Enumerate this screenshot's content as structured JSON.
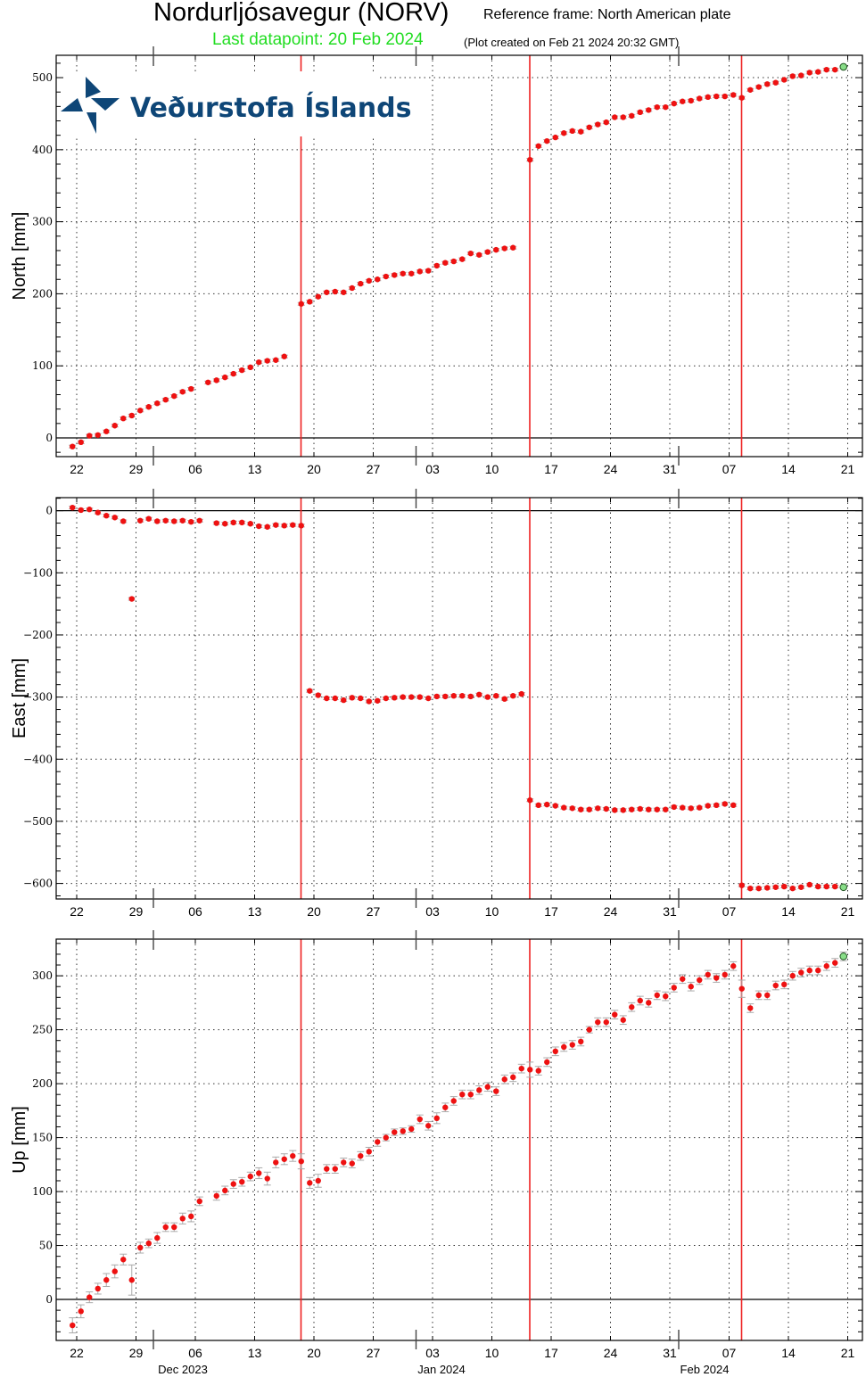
{
  "header": {
    "station_title": "Nordurljósavegur (NORV)",
    "reference_frame": "Reference frame: North American plate",
    "last_datapoint": "Last datapoint: 20 Feb 2024",
    "plot_created": "(Plot created on Feb 21 2024 20:32 GMT)"
  },
  "logo": {
    "text": "Veðurstofa Íslands",
    "color": "#0e4677"
  },
  "colors": {
    "point": "#ee1111",
    "last_point": "#88dd88",
    "event_line": "#ee2222",
    "errorbar": "#aaaaaa",
    "grid": "#333333"
  },
  "chart_data": [
    {
      "type": "scatter",
      "title": "North",
      "ylabel": "North [mm]",
      "ylim": [
        -26,
        531
      ],
      "yticks": [
        0,
        100,
        200,
        300,
        400,
        500
      ],
      "xlabel": "",
      "x_tick_labels": [
        "22",
        "29",
        "06",
        "13",
        "20",
        "27",
        "03",
        "10",
        "17",
        "24",
        "31",
        "07",
        "14",
        "21"
      ],
      "month_labels": [
        "Dec 2023",
        "Jan 2024",
        "Feb 2024"
      ],
      "event_lines_day": [
        26,
        53,
        78
      ],
      "x_start": "2023-11-22",
      "points": [
        [
          -0.5,
          -12
        ],
        [
          0.5,
          -6
        ],
        [
          1.5,
          3
        ],
        [
          2.5,
          4
        ],
        [
          3.5,
          9
        ],
        [
          4.5,
          17
        ],
        [
          5.5,
          27
        ],
        [
          6.5,
          31
        ],
        [
          7.5,
          38
        ],
        [
          8.5,
          43
        ],
        [
          9.5,
          48
        ],
        [
          10.5,
          53
        ],
        [
          11.5,
          58
        ],
        [
          12.5,
          64
        ],
        [
          13.5,
          68
        ],
        [
          15.5,
          77
        ],
        [
          16.5,
          80
        ],
        [
          17.5,
          84
        ],
        [
          18.5,
          89
        ],
        [
          19.5,
          94
        ],
        [
          20.5,
          98
        ],
        [
          21.5,
          105
        ],
        [
          22.5,
          107
        ],
        [
          23.5,
          108
        ],
        [
          24.5,
          113
        ],
        [
          26.5,
          186
        ],
        [
          27.5,
          189
        ],
        [
          28.5,
          196
        ],
        [
          29.5,
          202
        ],
        [
          30.5,
          203
        ],
        [
          31.5,
          202
        ],
        [
          32.5,
          208
        ],
        [
          33.5,
          214
        ],
        [
          34.5,
          218
        ],
        [
          35.5,
          220
        ],
        [
          36.5,
          224
        ],
        [
          37.5,
          226
        ],
        [
          38.5,
          228
        ],
        [
          39.5,
          228
        ],
        [
          40.5,
          231
        ],
        [
          41.5,
          232
        ],
        [
          42.5,
          239
        ],
        [
          43.5,
          243
        ],
        [
          44.5,
          245
        ],
        [
          45.5,
          248
        ],
        [
          46.5,
          256
        ],
        [
          47.5,
          254
        ],
        [
          48.5,
          258
        ],
        [
          49.5,
          261
        ],
        [
          50.5,
          263
        ],
        [
          51.5,
          264
        ],
        [
          53.5,
          386
        ],
        [
          54.5,
          405
        ],
        [
          55.5,
          412
        ],
        [
          56.5,
          417
        ],
        [
          57.5,
          423
        ],
        [
          58.5,
          426
        ],
        [
          59.5,
          425
        ],
        [
          60.5,
          431
        ],
        [
          61.5,
          435
        ],
        [
          62.5,
          438
        ],
        [
          63.5,
          445
        ],
        [
          64.5,
          445
        ],
        [
          65.5,
          447
        ],
        [
          66.5,
          452
        ],
        [
          67.5,
          455
        ],
        [
          68.5,
          459
        ],
        [
          69.5,
          459
        ],
        [
          70.5,
          464
        ],
        [
          71.5,
          467
        ],
        [
          72.5,
          468
        ],
        [
          73.5,
          471
        ],
        [
          74.5,
          473
        ],
        [
          75.5,
          474
        ],
        [
          76.5,
          474
        ],
        [
          77.5,
          476
        ],
        [
          78.5,
          472
        ],
        [
          79.5,
          483
        ],
        [
          80.5,
          487
        ],
        [
          81.5,
          491
        ],
        [
          82.5,
          493
        ],
        [
          83.5,
          497
        ],
        [
          84.5,
          502
        ],
        [
          85.5,
          503
        ],
        [
          86.5,
          507
        ],
        [
          87.5,
          508
        ],
        [
          88.5,
          511
        ],
        [
          89.5,
          511
        ]
      ],
      "last_point": [
        90.5,
        515
      ]
    },
    {
      "type": "scatter",
      "title": "East",
      "ylabel": "East [mm]",
      "ylim": [
        -625,
        21
      ],
      "yticks": [
        0,
        -100,
        -200,
        -300,
        -400,
        -500,
        -600
      ],
      "x_tick_labels": [
        "22",
        "29",
        "06",
        "13",
        "20",
        "27",
        "03",
        "10",
        "17",
        "24",
        "31",
        "07",
        "14",
        "21"
      ],
      "event_lines_day": [
        26,
        53,
        78
      ],
      "points": [
        [
          -0.5,
          5
        ],
        [
          0.5,
          1
        ],
        [
          1.5,
          2
        ],
        [
          2.5,
          -3
        ],
        [
          3.5,
          -8
        ],
        [
          4.5,
          -11
        ],
        [
          5.5,
          -17
        ],
        [
          6.5,
          -142
        ],
        [
          7.5,
          -16
        ],
        [
          8.5,
          -13
        ],
        [
          9.5,
          -17
        ],
        [
          10.5,
          -16
        ],
        [
          11.5,
          -17
        ],
        [
          12.5,
          -16
        ],
        [
          13.5,
          -18
        ],
        [
          14.5,
          -16
        ],
        [
          16.5,
          -20
        ],
        [
          17.5,
          -21
        ],
        [
          18.5,
          -19
        ],
        [
          19.5,
          -19
        ],
        [
          20.5,
          -21
        ],
        [
          21.5,
          -25
        ],
        [
          22.5,
          -26
        ],
        [
          23.5,
          -23
        ],
        [
          24.5,
          -24
        ],
        [
          25.5,
          -23
        ],
        [
          26.5,
          -24
        ],
        [
          27.5,
          -290
        ],
        [
          28.5,
          -297
        ],
        [
          29.5,
          -302
        ],
        [
          30.5,
          -302
        ],
        [
          31.5,
          -305
        ],
        [
          32.5,
          -301
        ],
        [
          33.5,
          -302
        ],
        [
          34.5,
          -307
        ],
        [
          35.5,
          -306
        ],
        [
          36.5,
          -302
        ],
        [
          37.5,
          -301
        ],
        [
          38.5,
          -300
        ],
        [
          39.5,
          -300
        ],
        [
          40.5,
          -300
        ],
        [
          41.5,
          -302
        ],
        [
          42.5,
          -299
        ],
        [
          43.5,
          -299
        ],
        [
          44.5,
          -298
        ],
        [
          45.5,
          -298
        ],
        [
          46.5,
          -299
        ],
        [
          47.5,
          -296
        ],
        [
          48.5,
          -300
        ],
        [
          49.5,
          -298
        ],
        [
          50.5,
          -303
        ],
        [
          51.5,
          -298
        ],
        [
          52.5,
          -295
        ],
        [
          53.5,
          -466
        ],
        [
          54.5,
          -474
        ],
        [
          55.5,
          -473
        ],
        [
          56.5,
          -475
        ],
        [
          57.5,
          -478
        ],
        [
          58.5,
          -479
        ],
        [
          59.5,
          -481
        ],
        [
          60.5,
          -481
        ],
        [
          61.5,
          -479
        ],
        [
          62.5,
          -480
        ],
        [
          63.5,
          -482
        ],
        [
          64.5,
          -482
        ],
        [
          65.5,
          -481
        ],
        [
          66.5,
          -480
        ],
        [
          67.5,
          -481
        ],
        [
          68.5,
          -481
        ],
        [
          69.5,
          -481
        ],
        [
          70.5,
          -477
        ],
        [
          71.5,
          -478
        ],
        [
          72.5,
          -479
        ],
        [
          73.5,
          -478
        ],
        [
          74.5,
          -475
        ],
        [
          75.5,
          -474
        ],
        [
          76.5,
          -472
        ],
        [
          77.5,
          -474
        ],
        [
          78.5,
          -603
        ],
        [
          79.5,
          -608
        ],
        [
          80.5,
          -608
        ],
        [
          81.5,
          -607
        ],
        [
          82.5,
          -606
        ],
        [
          83.5,
          -605
        ],
        [
          84.5,
          -608
        ],
        [
          85.5,
          -606
        ],
        [
          86.5,
          -602
        ],
        [
          87.5,
          -605
        ],
        [
          88.5,
          -605
        ],
        [
          89.5,
          -605
        ]
      ],
      "last_point": [
        90.5,
        -606
      ]
    },
    {
      "type": "scatter",
      "title": "Up",
      "ylabel": "Up [mm]",
      "ylim": [
        -38,
        334
      ],
      "yticks": [
        0,
        50,
        100,
        150,
        200,
        250,
        300
      ],
      "x_tick_labels": [
        "22",
        "29",
        "06",
        "13",
        "20",
        "27",
        "03",
        "10",
        "17",
        "24",
        "31",
        "07",
        "14",
        "21"
      ],
      "month_labels": [
        "Dec 2023",
        "Jan 2024",
        "Feb 2024"
      ],
      "event_lines_day": [
        26,
        53,
        78
      ],
      "points": [
        [
          -0.5,
          -24,
          7
        ],
        [
          0.5,
          -11,
          6
        ],
        [
          1.5,
          2,
          5
        ],
        [
          2.5,
          10,
          5
        ],
        [
          3.5,
          18,
          6
        ],
        [
          4.5,
          26,
          6
        ],
        [
          5.5,
          37,
          5
        ],
        [
          6.5,
          18,
          14
        ],
        [
          7.5,
          48,
          5
        ],
        [
          8.5,
          52,
          4
        ],
        [
          9.5,
          57,
          5
        ],
        [
          10.5,
          67,
          4
        ],
        [
          11.5,
          67,
          4
        ],
        [
          12.5,
          75,
          5
        ],
        [
          13.5,
          77,
          5
        ],
        [
          14.5,
          91,
          4
        ],
        [
          16.5,
          96,
          4
        ],
        [
          17.5,
          101,
          4
        ],
        [
          18.5,
          107,
          4
        ],
        [
          19.5,
          109,
          4
        ],
        [
          20.5,
          114,
          4
        ],
        [
          21.5,
          117,
          5
        ],
        [
          22.5,
          112,
          6
        ],
        [
          23.5,
          127,
          5
        ],
        [
          24.5,
          130,
          5
        ],
        [
          25.5,
          133,
          5
        ],
        [
          26.5,
          128,
          7
        ],
        [
          27.5,
          108,
          5
        ],
        [
          28.5,
          110,
          6
        ],
        [
          29.5,
          121,
          4
        ],
        [
          30.5,
          121,
          4
        ],
        [
          31.5,
          127,
          4
        ],
        [
          32.5,
          126,
          4
        ],
        [
          33.5,
          133,
          4
        ],
        [
          34.5,
          137,
          4
        ],
        [
          35.5,
          146,
          4
        ],
        [
          36.5,
          150,
          3
        ],
        [
          37.5,
          155,
          3
        ],
        [
          38.5,
          156,
          3
        ],
        [
          39.5,
          158,
          3
        ],
        [
          40.5,
          167,
          4
        ],
        [
          41.5,
          161,
          4
        ],
        [
          42.5,
          168,
          5
        ],
        [
          43.5,
          178,
          4
        ],
        [
          44.5,
          184,
          4
        ],
        [
          45.5,
          190,
          4
        ],
        [
          46.5,
          190,
          4
        ],
        [
          47.5,
          194,
          4
        ],
        [
          48.5,
          197,
          4
        ],
        [
          49.5,
          193,
          4
        ],
        [
          50.5,
          204,
          4
        ],
        [
          51.5,
          206,
          4
        ],
        [
          52.5,
          214,
          4
        ],
        [
          53.5,
          213,
          7
        ],
        [
          54.5,
          212,
          4
        ],
        [
          55.5,
          220,
          4
        ],
        [
          56.5,
          230,
          4
        ],
        [
          57.5,
          234,
          4
        ],
        [
          58.5,
          236,
          4
        ],
        [
          59.5,
          239,
          4
        ],
        [
          60.5,
          250,
          3
        ],
        [
          61.5,
          257,
          4
        ],
        [
          62.5,
          257,
          4
        ],
        [
          63.5,
          264,
          4
        ],
        [
          64.5,
          259,
          4
        ],
        [
          65.5,
          271,
          4
        ],
        [
          66.5,
          277,
          4
        ],
        [
          67.5,
          275,
          4
        ],
        [
          68.5,
          282,
          4
        ],
        [
          69.5,
          281,
          4
        ],
        [
          70.5,
          289,
          4
        ],
        [
          71.5,
          297,
          4
        ],
        [
          72.5,
          290,
          4
        ],
        [
          73.5,
          296,
          4
        ],
        [
          74.5,
          301,
          4
        ],
        [
          75.5,
          298,
          4
        ],
        [
          76.5,
          301,
          4
        ],
        [
          77.5,
          309,
          4
        ],
        [
          78.5,
          288,
          8
        ],
        [
          79.5,
          270,
          4
        ],
        [
          80.5,
          282,
          4
        ],
        [
          81.5,
          282,
          4
        ],
        [
          82.5,
          291,
          4
        ],
        [
          83.5,
          292,
          4
        ],
        [
          84.5,
          300,
          4
        ],
        [
          85.5,
          303,
          4
        ],
        [
          86.5,
          305,
          4
        ],
        [
          87.5,
          305,
          4
        ],
        [
          88.5,
          309,
          4
        ],
        [
          89.5,
          312,
          4
        ]
      ],
      "last_point": [
        90.5,
        318,
        4
      ]
    }
  ]
}
